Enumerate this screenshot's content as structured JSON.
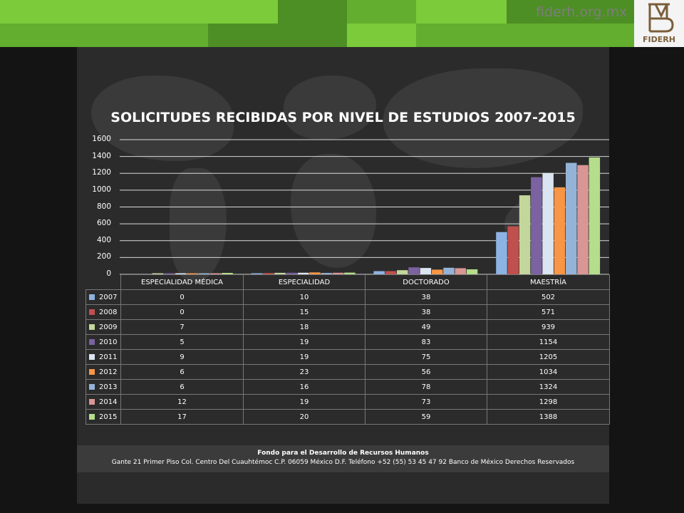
{
  "header": {
    "site": "fiderh.org.mx",
    "logo_text": "FIDERH"
  },
  "colors": {
    "band_light": "#7ccb3a",
    "band_dark": "#4d8f24",
    "gridline": "#d9d9d9",
    "panel": "#2b2b2b"
  },
  "chart_data": {
    "type": "bar",
    "title": "SOLICITUDES RECIBIDAS POR NIVEL DE ESTUDIOS 2007-2015",
    "categories": [
      "ESPECIALIDAD MÉDICA",
      "ESPECIALIDAD",
      "DOCTORADO",
      "MAESTRÍA"
    ],
    "ylim": [
      0,
      1600
    ],
    "yticks": [
      0,
      200,
      400,
      600,
      800,
      1000,
      1200,
      1400,
      1600
    ],
    "grid": true,
    "legend": "data-table",
    "series": [
      {
        "name": "2007",
        "color": "#8db3e2",
        "values": [
          0,
          10,
          38,
          502
        ]
      },
      {
        "name": "2008",
        "color": "#c0504d",
        "values": [
          0,
          15,
          38,
          571
        ]
      },
      {
        "name": "2009",
        "color": "#c3d69b",
        "values": [
          7,
          18,
          49,
          939
        ]
      },
      {
        "name": "2010",
        "color": "#7b62a1",
        "values": [
          5,
          19,
          83,
          1154
        ]
      },
      {
        "name": "2011",
        "color": "#dbe5f1",
        "values": [
          9,
          19,
          75,
          1205
        ]
      },
      {
        "name": "2012",
        "color": "#f79646",
        "values": [
          6,
          23,
          56,
          1034
        ]
      },
      {
        "name": "2013",
        "color": "#95b3d7",
        "values": [
          6,
          16,
          78,
          1324
        ]
      },
      {
        "name": "2014",
        "color": "#d99694",
        "values": [
          12,
          19,
          73,
          1298
        ]
      },
      {
        "name": "2015",
        "color": "#b6dd8b",
        "values": [
          17,
          20,
          59,
          1388
        ]
      }
    ]
  },
  "footer": {
    "org": "Fondo para el Desarrollo de Recursos Humanos",
    "address": "Gante 21 Primer Piso Col. Centro Del Cuauhtémoc C.P. 06059 México D.F. Teléfono +52 (55) 53 45 47 92 Banco de México Derechos Reservados"
  }
}
